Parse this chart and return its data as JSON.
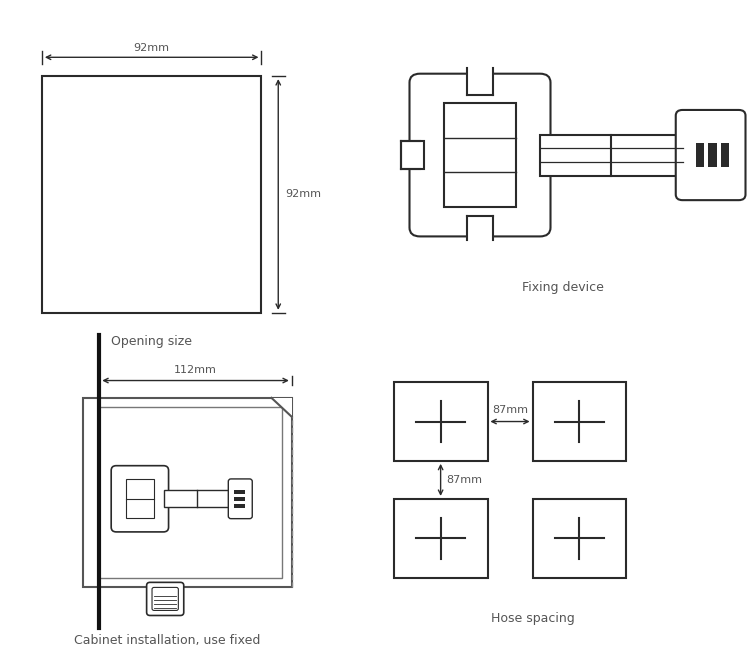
{
  "bg_color": "#ffffff",
  "line_color": "#2a2a2a",
  "text_color": "#555555",
  "dim_color": "#555555",
  "panel_labels": [
    "Opening size",
    "Fixing device",
    "Cabinet installation, use fixed",
    "Hose spacing"
  ],
  "opening_size_mm": "92mm",
  "cabinet_depth_mm": "112mm",
  "hose_spacing_mm": "87mm",
  "font_size_label": 9,
  "font_size_dim": 8
}
